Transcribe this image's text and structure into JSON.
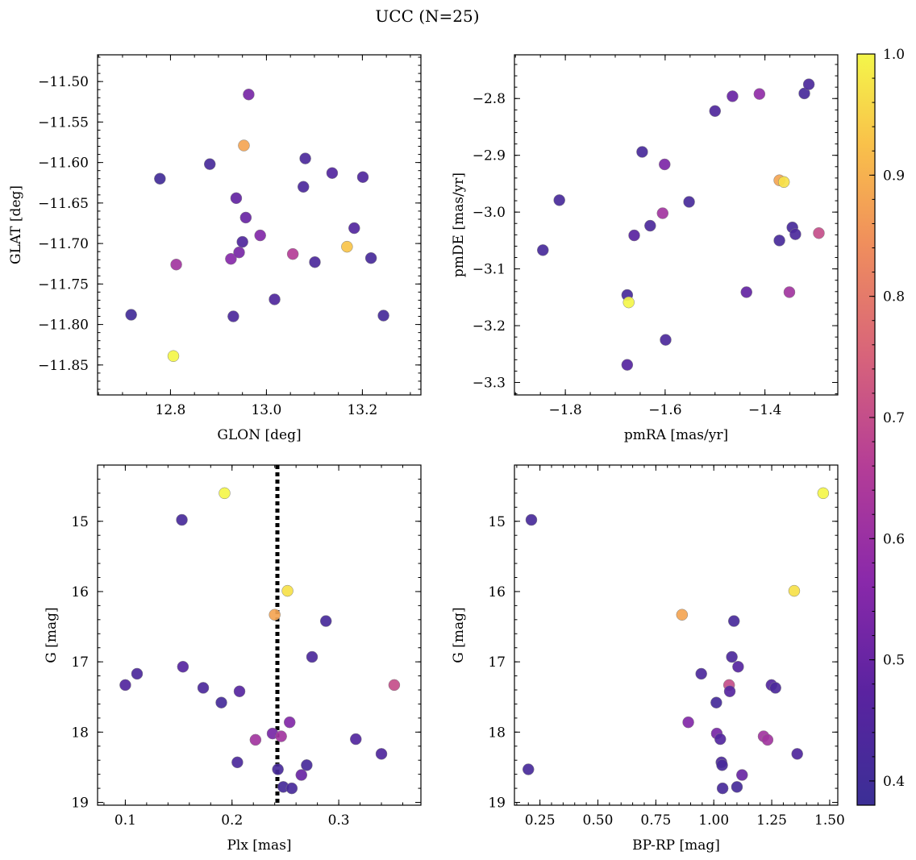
{
  "figure_title": "UCC (N=25)",
  "colorbar": {
    "min": 0.38,
    "max": 1.0,
    "ticks": [
      0.4,
      0.5,
      0.6,
      0.7,
      0.8,
      0.9,
      1.0
    ],
    "tick_labels": [
      "0.4",
      "0.5",
      "0.6",
      "0.7",
      "0.8",
      "0.9",
      "1.0"
    ],
    "colormap": "plasma"
  },
  "chart_data": [
    {
      "type": "scatter",
      "id": "glon-glat",
      "xlabel": "GLON [deg]",
      "ylabel": "GLAT [deg]",
      "xlim": [
        12.648,
        13.322
      ],
      "ylim": [
        -11.887,
        -11.467
      ],
      "x_inverted": false,
      "y_inverted": false,
      "xticks": [
        12.8,
        13.0,
        13.2
      ],
      "xtick_labels": [
        "12.8",
        "13.0",
        "13.2"
      ],
      "xminor": 0.05,
      "yticks": [
        -11.5,
        -11.55,
        -11.6,
        -11.65,
        -11.7,
        -11.75,
        -11.8,
        -11.85
      ],
      "ytick_labels": [
        "−11.50",
        "−11.55",
        "−11.60",
        "−11.65",
        "−11.70",
        "−11.75",
        "−11.80",
        "−11.85"
      ],
      "yminor": 0.01,
      "vline": null,
      "points": [
        {
          "x": 12.718,
          "y": -11.788,
          "c": 0.4
        },
        {
          "x": 12.778,
          "y": -11.62,
          "c": 0.4
        },
        {
          "x": 12.806,
          "y": -11.839,
          "c": 1.0
        },
        {
          "x": 12.812,
          "y": -11.726,
          "c": 0.62
        },
        {
          "x": 12.882,
          "y": -11.602,
          "c": 0.42
        },
        {
          "x": 12.926,
          "y": -11.719,
          "c": 0.56
        },
        {
          "x": 12.931,
          "y": -11.79,
          "c": 0.43
        },
        {
          "x": 12.937,
          "y": -11.644,
          "c": 0.49
        },
        {
          "x": 12.943,
          "y": -11.711,
          "c": 0.53
        },
        {
          "x": 12.953,
          "y": -11.579,
          "c": 0.88
        },
        {
          "x": 12.95,
          "y": -11.698,
          "c": 0.44
        },
        {
          "x": 12.957,
          "y": -11.668,
          "c": 0.5
        },
        {
          "x": 12.963,
          "y": -11.516,
          "c": 0.53
        },
        {
          "x": 12.987,
          "y": -11.69,
          "c": 0.55
        },
        {
          "x": 13.017,
          "y": -11.769,
          "c": 0.44
        },
        {
          "x": 13.055,
          "y": -11.713,
          "c": 0.66
        },
        {
          "x": 13.077,
          "y": -11.63,
          "c": 0.43
        },
        {
          "x": 13.081,
          "y": -11.595,
          "c": 0.43
        },
        {
          "x": 13.101,
          "y": -11.723,
          "c": 0.43
        },
        {
          "x": 13.137,
          "y": -11.613,
          "c": 0.45
        },
        {
          "x": 13.168,
          "y": -11.704,
          "c": 0.93
        },
        {
          "x": 13.183,
          "y": -11.681,
          "c": 0.45
        },
        {
          "x": 13.201,
          "y": -11.618,
          "c": 0.44
        },
        {
          "x": 13.218,
          "y": -11.718,
          "c": 0.42
        },
        {
          "x": 13.244,
          "y": -11.789,
          "c": 0.41
        }
      ]
    },
    {
      "type": "scatter",
      "id": "pmra-pmde",
      "xlabel": "pmRA [mas/yr]",
      "ylabel": "pmDE [mas/yr]",
      "xlim": [
        -1.902,
        -1.254
      ],
      "ylim": [
        -3.322,
        -2.723
      ],
      "x_inverted": false,
      "y_inverted": false,
      "xticks": [
        -1.8,
        -1.6,
        -1.4
      ],
      "xtick_labels": [
        "−1.8",
        "−1.6",
        "−1.4"
      ],
      "xminor": 0.05,
      "yticks": [
        -2.8,
        -2.9,
        -3.0,
        -3.1,
        -3.2,
        -3.3
      ],
      "ytick_labels": [
        "−2.8",
        "−2.9",
        "−3.0",
        "−3.1",
        "−3.2",
        "−3.3"
      ],
      "yminor": 0.02,
      "vline": null,
      "points": [
        {
          "x": -1.845,
          "y": -3.067,
          "c": 0.42
        },
        {
          "x": -1.812,
          "y": -2.979,
          "c": 0.42
        },
        {
          "x": -1.676,
          "y": -3.146,
          "c": 0.42
        },
        {
          "x": -1.676,
          "y": -3.269,
          "c": 0.46
        },
        {
          "x": -1.673,
          "y": -3.159,
          "c": 1.0
        },
        {
          "x": -1.662,
          "y": -3.041,
          "c": 0.47
        },
        {
          "x": -1.646,
          "y": -2.894,
          "c": 0.42
        },
        {
          "x": -1.63,
          "y": -3.024,
          "c": 0.43
        },
        {
          "x": -1.605,
          "y": -3.002,
          "c": 0.62
        },
        {
          "x": -1.601,
          "y": -2.916,
          "c": 0.54
        },
        {
          "x": -1.599,
          "y": -3.225,
          "c": 0.43
        },
        {
          "x": -1.552,
          "y": -2.982,
          "c": 0.42
        },
        {
          "x": -1.5,
          "y": -2.822,
          "c": 0.44
        },
        {
          "x": -1.465,
          "y": -2.796,
          "c": 0.5
        },
        {
          "x": -1.437,
          "y": -3.141,
          "c": 0.49
        },
        {
          "x": -1.411,
          "y": -2.792,
          "c": 0.58
        },
        {
          "x": -1.371,
          "y": -2.944,
          "c": 0.88
        },
        {
          "x": -1.371,
          "y": -3.05,
          "c": 0.42
        },
        {
          "x": -1.362,
          "y": -2.947,
          "c": 0.97
        },
        {
          "x": -1.351,
          "y": -3.141,
          "c": 0.62
        },
        {
          "x": -1.345,
          "y": -3.027,
          "c": 0.42
        },
        {
          "x": -1.339,
          "y": -3.039,
          "c": 0.43
        },
        {
          "x": -1.321,
          "y": -2.791,
          "c": 0.42
        },
        {
          "x": -1.312,
          "y": -2.775,
          "c": 0.43
        },
        {
          "x": -1.292,
          "y": -3.037,
          "c": 0.7
        }
      ]
    },
    {
      "type": "scatter",
      "id": "plx-g",
      "xlabel": "Plx [mas]",
      "ylabel": "G [mag]",
      "xlim": [
        0.074,
        0.377
      ],
      "ylim": [
        19.04,
        14.2
      ],
      "x_inverted": false,
      "y_inverted": true,
      "xticks": [
        0.1,
        0.2,
        0.3
      ],
      "xtick_labels": [
        "0.1",
        "0.2",
        "0.3"
      ],
      "xminor": 0.02,
      "yticks": [
        15,
        16,
        17,
        18,
        19
      ],
      "ytick_labels": [
        "15",
        "16",
        "17",
        "18",
        "19"
      ],
      "yminor": 0.2,
      "vline": 0.2425,
      "points": [
        {
          "x": 0.1,
          "y": 17.33,
          "c": 0.45
        },
        {
          "x": 0.111,
          "y": 17.17,
          "c": 0.43
        },
        {
          "x": 0.153,
          "y": 14.98,
          "c": 0.42
        },
        {
          "x": 0.154,
          "y": 17.07,
          "c": 0.46
        },
        {
          "x": 0.173,
          "y": 17.37,
          "c": 0.43
        },
        {
          "x": 0.19,
          "y": 17.58,
          "c": 0.41
        },
        {
          "x": 0.193,
          "y": 14.6,
          "c": 1.0
        },
        {
          "x": 0.205,
          "y": 18.43,
          "c": 0.43
        },
        {
          "x": 0.207,
          "y": 17.42,
          "c": 0.46
        },
        {
          "x": 0.222,
          "y": 18.11,
          "c": 0.62
        },
        {
          "x": 0.238,
          "y": 18.02,
          "c": 0.53
        },
        {
          "x": 0.24,
          "y": 16.33,
          "c": 0.88
        },
        {
          "x": 0.243,
          "y": 18.53,
          "c": 0.42
        },
        {
          "x": 0.246,
          "y": 18.06,
          "c": 0.62
        },
        {
          "x": 0.248,
          "y": 18.78,
          "c": 0.41
        },
        {
          "x": 0.252,
          "y": 15.99,
          "c": 0.97
        },
        {
          "x": 0.254,
          "y": 17.86,
          "c": 0.55
        },
        {
          "x": 0.256,
          "y": 18.8,
          "c": 0.42
        },
        {
          "x": 0.265,
          "y": 18.61,
          "c": 0.5
        },
        {
          "x": 0.27,
          "y": 18.47,
          "c": 0.42
        },
        {
          "x": 0.275,
          "y": 16.93,
          "c": 0.43
        },
        {
          "x": 0.288,
          "y": 16.42,
          "c": 0.42
        },
        {
          "x": 0.316,
          "y": 18.1,
          "c": 0.45
        },
        {
          "x": 0.34,
          "y": 18.31,
          "c": 0.44
        },
        {
          "x": 0.352,
          "y": 17.33,
          "c": 0.7
        }
      ]
    },
    {
      "type": "scatter",
      "id": "bprp-g",
      "xlabel": "BP-RP [mag]",
      "ylabel": "G [mag]",
      "xlim": [
        0.14,
        1.535
      ],
      "ylim": [
        19.04,
        14.2
      ],
      "x_inverted": false,
      "y_inverted": true,
      "xticks": [
        0.25,
        0.5,
        0.75,
        1.0,
        1.25,
        1.5
      ],
      "xtick_labels": [
        "0.25",
        "0.50",
        "0.75",
        "1.00",
        "1.25",
        "1.50"
      ],
      "xminor": 0.05,
      "yticks": [
        15,
        16,
        17,
        18,
        19
      ],
      "ytick_labels": [
        "15",
        "16",
        "17",
        "18",
        "19"
      ],
      "yminor": 0.2,
      "vline": null,
      "points": [
        {
          "x": 0.2,
          "y": 18.53,
          "c": 0.42
        },
        {
          "x": 0.213,
          "y": 14.98,
          "c": 0.42
        },
        {
          "x": 0.863,
          "y": 16.33,
          "c": 0.88
        },
        {
          "x": 0.89,
          "y": 17.86,
          "c": 0.55
        },
        {
          "x": 0.946,
          "y": 17.17,
          "c": 0.43
        },
        {
          "x": 1.011,
          "y": 17.58,
          "c": 0.41
        },
        {
          "x": 1.013,
          "y": 18.02,
          "c": 0.53
        },
        {
          "x": 1.028,
          "y": 18.1,
          "c": 0.45
        },
        {
          "x": 1.033,
          "y": 18.43,
          "c": 0.43
        },
        {
          "x": 1.036,
          "y": 18.47,
          "c": 0.42
        },
        {
          "x": 1.038,
          "y": 18.8,
          "c": 0.42
        },
        {
          "x": 1.066,
          "y": 17.33,
          "c": 0.7
        },
        {
          "x": 1.069,
          "y": 17.42,
          "c": 0.46
        },
        {
          "x": 1.078,
          "y": 16.93,
          "c": 0.43
        },
        {
          "x": 1.087,
          "y": 16.42,
          "c": 0.42
        },
        {
          "x": 1.1,
          "y": 18.78,
          "c": 0.41
        },
        {
          "x": 1.105,
          "y": 17.07,
          "c": 0.46
        },
        {
          "x": 1.122,
          "y": 18.61,
          "c": 0.5
        },
        {
          "x": 1.215,
          "y": 18.06,
          "c": 0.62
        },
        {
          "x": 1.232,
          "y": 18.11,
          "c": 0.62
        },
        {
          "x": 1.249,
          "y": 17.33,
          "c": 0.45
        },
        {
          "x": 1.266,
          "y": 17.37,
          "c": 0.43
        },
        {
          "x": 1.347,
          "y": 15.99,
          "c": 0.97
        },
        {
          "x": 1.36,
          "y": 18.31,
          "c": 0.44
        },
        {
          "x": 1.472,
          "y": 14.6,
          "c": 1.0
        }
      ]
    }
  ]
}
